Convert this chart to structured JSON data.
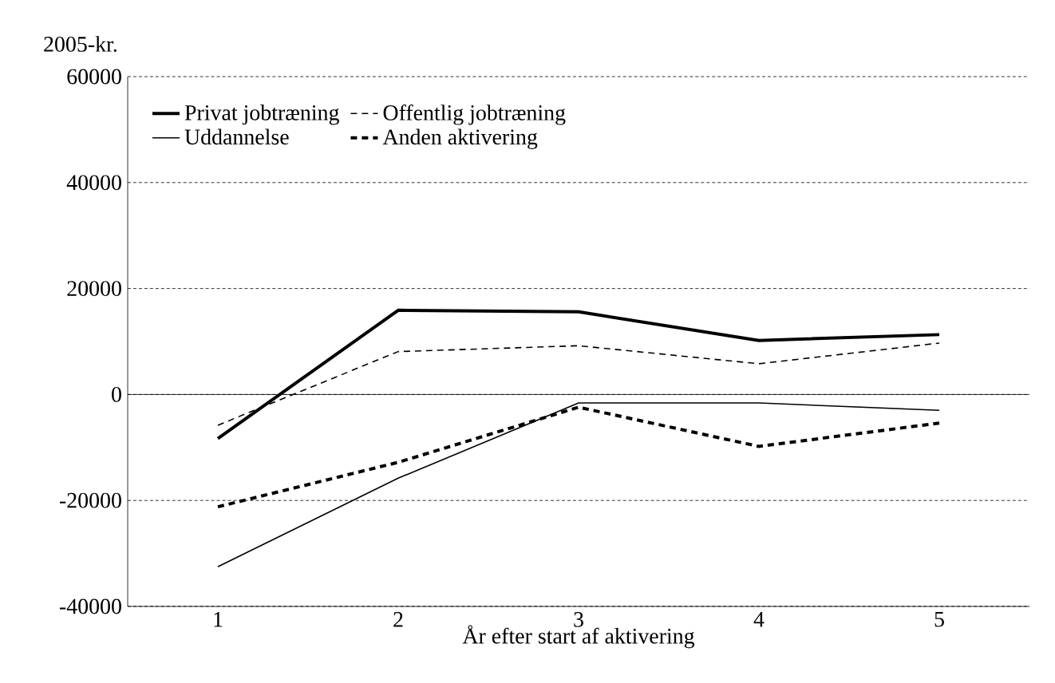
{
  "chart_data": {
    "type": "line",
    "ylabel": "2005-kr.",
    "xlabel": "År efter start af aktivering",
    "categories": [
      "1",
      "2",
      "3",
      "4",
      "5"
    ],
    "series": [
      {
        "name": "Privat jobtræning",
        "color": "#000000",
        "line_style": "solid",
        "values": [
          -8300,
          15900,
          15600,
          10200,
          11300
        ]
      },
      {
        "name": "Offentlig jobtræning",
        "color": "#000000",
        "line_style": "dashed",
        "values": [
          -5800,
          8100,
          9200,
          5800,
          9700
        ]
      },
      {
        "name": "Uddannelse",
        "color": "#000000",
        "line_style": "solid",
        "values": [
          -32500,
          -15800,
          -1600,
          -1600,
          -3000
        ]
      },
      {
        "name": "Anden aktivering",
        "color": "#000000",
        "line_style": "dashed",
        "values": [
          -21200,
          -12800,
          -2400,
          -9800,
          -5400
        ]
      }
    ],
    "ylim": [
      -40000,
      60000
    ],
    "yticks": [
      -40000,
      -20000,
      0,
      20000,
      40000,
      60000
    ],
    "ref_lines": [
      {
        "axis": "y",
        "value": 0,
        "line_style": "solid"
      }
    ],
    "grid": "y",
    "legend": "top left",
    "marker": "none"
  }
}
